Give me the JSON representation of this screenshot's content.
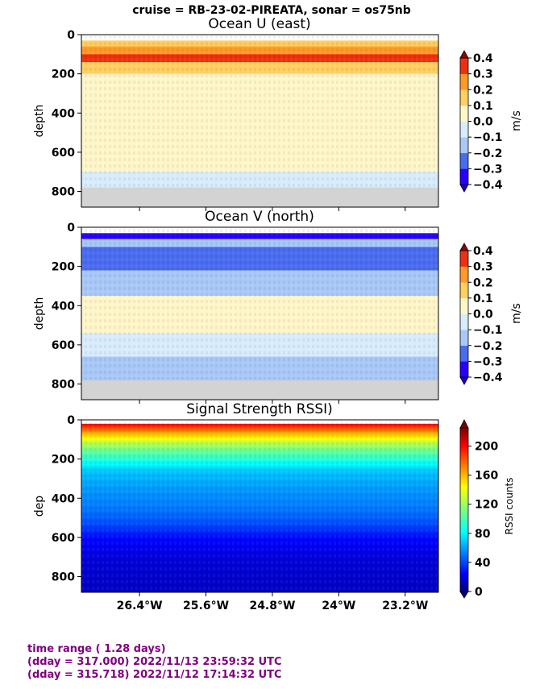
{
  "suptitle": "cruise = RB-23-02-PIREATA,  sonar = os75nb",
  "footer": {
    "line1": "time range ( 1.28 days)",
    "line2": "(dday = 317.000) 2022/11/13 23:59:32 UTC",
    "line3": "(dday = 315.718) 2022/11/12 17:14:32 UTC"
  },
  "chart_data": [
    {
      "type": "heatmap",
      "title": "Ocean U (east)",
      "ylabel": "depth",
      "xlabel": "",
      "x_range_deg_west": [
        27.1,
        22.8
      ],
      "ylim": [
        880,
        0
      ],
      "yticks": [
        0,
        200,
        400,
        600,
        800
      ],
      "colorbar": {
        "label": "m/s",
        "levels": [
          -0.4,
          -0.3,
          -0.2,
          -0.1,
          0.0,
          0.1,
          0.2,
          0.3,
          0.4
        ],
        "tick_labels": [
          "−0.4",
          "−0.3",
          "−0.2",
          "−0.1",
          "0.0",
          "0.1",
          "0.2",
          "0.3",
          "0.4"
        ],
        "colors": [
          "#2a00ff",
          "#4a6cf0",
          "#a8c8f8",
          "#d8ecfc",
          "#fff6c8",
          "#ffcf60",
          "#ff9a28",
          "#ee3010"
        ]
      },
      "bands": [
        {
          "depth": [
            30,
            60
          ],
          "value": 0.12
        },
        {
          "depth": [
            60,
            100
          ],
          "value": 0.22
        },
        {
          "depth": [
            100,
            140
          ],
          "value": 0.32
        },
        {
          "depth": [
            140,
            200
          ],
          "value": 0.17
        },
        {
          "depth": [
            200,
            300
          ],
          "value": 0.08
        },
        {
          "depth": [
            300,
            400
          ],
          "value": 0.05
        },
        {
          "depth": [
            400,
            560
          ],
          "value": 0.02
        },
        {
          "depth": [
            560,
            700
          ],
          "value": 0.04
        },
        {
          "depth": [
            700,
            790
          ],
          "value": -0.08
        }
      ],
      "no_data_below_depth": 780
    },
    {
      "type": "heatmap",
      "title": "Ocean V (north)",
      "ylabel": "depth",
      "xlabel": "",
      "x_range_deg_west": [
        27.1,
        22.8
      ],
      "ylim": [
        880,
        0
      ],
      "yticks": [
        0,
        200,
        400,
        600,
        800
      ],
      "colorbar": {
        "label": "m/s",
        "levels": [
          -0.4,
          -0.3,
          -0.2,
          -0.1,
          0.0,
          0.1,
          0.2,
          0.3,
          0.4
        ],
        "tick_labels": [
          "−0.4",
          "−0.3",
          "−0.2",
          "−0.1",
          "0.0",
          "0.1",
          "0.2",
          "0.3",
          "0.4"
        ],
        "colors": [
          "#2a00ff",
          "#4a6cf0",
          "#a8c8f8",
          "#d8ecfc",
          "#fff6c8",
          "#ffcf60",
          "#ff9a28",
          "#ee3010"
        ]
      },
      "bands": [
        {
          "depth": [
            30,
            60
          ],
          "value": -0.45
        },
        {
          "depth": [
            60,
            100
          ],
          "value": -0.15
        },
        {
          "depth": [
            100,
            220
          ],
          "value": -0.22
        },
        {
          "depth": [
            220,
            350
          ],
          "value": -0.12
        },
        {
          "depth": [
            350,
            540
          ],
          "value": 0.03
        },
        {
          "depth": [
            540,
            660
          ],
          "value": -0.05
        },
        {
          "depth": [
            660,
            790
          ],
          "value": -0.14
        }
      ],
      "no_data_below_depth": 780
    },
    {
      "type": "heatmap",
      "title": "Signal Strength RSSI)",
      "ylabel": "dep",
      "xlabel": "",
      "x_range_deg_west": [
        27.1,
        22.8
      ],
      "xticks": [
        26.4,
        25.6,
        24.8,
        24.0,
        23.2
      ],
      "xtick_labels": [
        "26.4°W",
        "25.6°W",
        "24.8°W",
        "24°W",
        "23.2°W"
      ],
      "ylim": [
        880,
        0
      ],
      "yticks": [
        0,
        200,
        400,
        600,
        800
      ],
      "colorbar": {
        "label": "RSSI counts",
        "range": [
          0,
          225
        ],
        "ticks": [
          0,
          40,
          80,
          120,
          160,
          200
        ]
      },
      "profile": [
        {
          "depth": 20,
          "value": 200
        },
        {
          "depth": 60,
          "value": 165
        },
        {
          "depth": 100,
          "value": 135
        },
        {
          "depth": 150,
          "value": 110
        },
        {
          "depth": 200,
          "value": 92
        },
        {
          "depth": 260,
          "value": 72
        },
        {
          "depth": 350,
          "value": 62
        },
        {
          "depth": 450,
          "value": 55
        },
        {
          "depth": 530,
          "value": 45
        },
        {
          "depth": 600,
          "value": 30
        },
        {
          "depth": 700,
          "value": 20
        },
        {
          "depth": 880,
          "value": 15
        }
      ]
    }
  ]
}
